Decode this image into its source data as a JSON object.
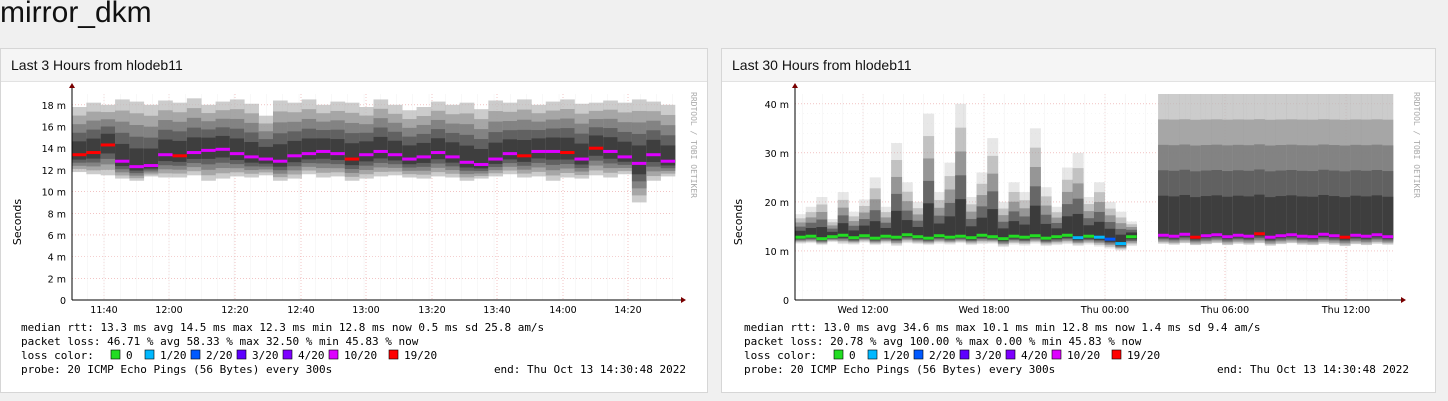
{
  "page": {
    "title": "mirror_dkm"
  },
  "colors": {
    "loss": [
      "#22dd22",
      "#00b8ff",
      "#0059ff",
      "#5e00ff",
      "#7e00ff",
      "#dd00ff",
      "#ff0000"
    ],
    "smoke": [
      "#bbbbbb",
      "#999999",
      "#777777",
      "#555555",
      "#333333"
    ]
  },
  "panels": [
    {
      "header": "Last 3 Hours from hlodeb11",
      "ylabel": "Seconds",
      "watermark": "RRDTOOL / TOBI OETIKER",
      "stats": {
        "rtt": "median rtt:  13.3 ms avg   14.5 ms max   12.3 ms min   12.8 ms now   0.5 ms sd   25.8   am/s",
        "loss": "packet loss: 46.71 % avg   58.33 % max   32.50 % min   45.83 % now",
        "probe": "probe:        20 ICMP Echo Pings (56 Bytes) every 300s",
        "end": "end: Thu Oct 13 14:30:48 2022"
      },
      "loss_legend_label": "loss color:",
      "loss_legend": [
        "0",
        "1/20",
        "2/20",
        "3/20",
        "4/20",
        "10/20",
        "19/20"
      ],
      "chart_data": {
        "type": "area",
        "xlabel": "",
        "ylabel": "Seconds",
        "x_ticks": [
          "11:40",
          "12:00",
          "12:20",
          "12:40",
          "13:00",
          "13:20",
          "13:40",
          "14:00",
          "14:20"
        ],
        "y_ticks": [
          "0",
          "2 m",
          "4 m",
          "6 m",
          "8 m",
          "10 m",
          "12 m",
          "14 m",
          "16 m",
          "18 m"
        ],
        "ylim": [
          0,
          0.019
        ],
        "grid": true,
        "median_ms": [
          13.4,
          13.6,
          14.3,
          12.8,
          12.3,
          12.4,
          13.4,
          13.3,
          13.6,
          13.8,
          13.9,
          13.5,
          13.2,
          13.0,
          12.8,
          13.3,
          13.5,
          13.7,
          13.5,
          13.0,
          13.4,
          13.7,
          13.4,
          13.0,
          13.2,
          13.6,
          13.2,
          12.7,
          12.5,
          13.0,
          13.5,
          13.3,
          13.7,
          13.7,
          13.6,
          13.0,
          14.0,
          13.7,
          13.2,
          12.6,
          13.4,
          12.8
        ],
        "low_ms": [
          11.8,
          11.6,
          11.5,
          11.2,
          11.0,
          11.4,
          11.3,
          11.3,
          11.5,
          11.0,
          11.2,
          11.4,
          11.3,
          11.5,
          11.0,
          11.2,
          11.6,
          11.3,
          11.4,
          11.0,
          11.2,
          11.4,
          11.5,
          11.3,
          11.2,
          11.4,
          11.3,
          11.0,
          11.2,
          11.4,
          11.6,
          11.3,
          11.4,
          11.0,
          11.3,
          11.2,
          11.5,
          11.3,
          11.6,
          9.0,
          11.0,
          11.4
        ],
        "high_ms": [
          17.8,
          18.2,
          18.0,
          18.5,
          18.3,
          18.0,
          18.4,
          18.2,
          18.6,
          18.0,
          18.3,
          18.5,
          18.1,
          17.0,
          18.4,
          18.2,
          18.5,
          18.0,
          18.3,
          18.2,
          17.8,
          18.5,
          18.0,
          17.5,
          17.8,
          18.3,
          18.0,
          18.2,
          17.6,
          18.4,
          18.2,
          18.5,
          18.0,
          18.3,
          18.5,
          18.1,
          18.2,
          18.4,
          18.2,
          18.5,
          18.3,
          18.0
        ],
        "loss_level": [
          6,
          6,
          6,
          5,
          5,
          5,
          5,
          6,
          5,
          5,
          5,
          5,
          5,
          5,
          5,
          5,
          5,
          5,
          5,
          6,
          5,
          5,
          5,
          5,
          5,
          5,
          5,
          5,
          5,
          5,
          5,
          6,
          5,
          5,
          6,
          5,
          6,
          5,
          5,
          5,
          5,
          5
        ]
      }
    },
    {
      "header": "Last 30 Hours from hlodeb11",
      "ylabel": "Seconds",
      "watermark": "RRDTOOL / TOBI OETIKER",
      "stats": {
        "rtt": "median rtt:  13.0 ms avg   34.6 ms max   10.1 ms min   12.8 ms now   1.4 ms sd   9.4   am/s",
        "loss": "packet loss: 20.78 % avg   100.00 % max   0.00 % min   45.83 % now",
        "probe": "probe:        20 ICMP Echo Pings (56 Bytes) every 300s",
        "end": "end: Thu Oct 13 14:30:48 2022"
      },
      "loss_legend_label": "loss color:",
      "loss_legend": [
        "0",
        "1/20",
        "2/20",
        "3/20",
        "4/20",
        "10/20",
        "19/20"
      ],
      "chart_data": {
        "type": "area",
        "xlabel": "",
        "ylabel": "Seconds",
        "x_ticks": [
          "Wed 12:00",
          "Wed 18:00",
          "Thu 00:00",
          "Thu 06:00",
          "Thu 12:00"
        ],
        "y_ticks": [
          "0",
          "10 m",
          "20 m",
          "30 m",
          "40 m"
        ],
        "ylim": [
          0,
          0.042
        ],
        "grid": true,
        "median_ms": [
          12.8,
          13.0,
          12.5,
          12.9,
          13.2,
          12.7,
          13.1,
          12.6,
          13.0,
          12.8,
          13.3,
          12.9,
          12.6,
          13.1,
          12.8,
          13.0,
          12.7,
          13.2,
          12.9,
          12.5,
          13.0,
          12.8,
          13.1,
          12.6,
          12.9,
          13.2,
          12.7,
          13.0,
          12.8,
          12.4,
          11.5,
          12.9,
          null,
          null,
          13.2,
          13.0,
          13.4,
          12.8,
          13.1,
          13.3,
          12.9,
          13.2,
          13.0,
          13.5,
          12.8,
          13.1,
          13.3,
          13.0,
          12.9,
          13.4,
          13.1,
          12.8,
          13.2,
          13.0,
          13.3,
          12.9
        ],
        "low_ms": [
          11.5,
          11.6,
          11.2,
          11.8,
          11.4,
          11.3,
          11.7,
          11.2,
          11.5,
          11.0,
          11.6,
          11.4,
          11.2,
          11.5,
          11.3,
          11.6,
          11.2,
          11.4,
          11.5,
          10.8,
          11.3,
          11.1,
          11.5,
          11.0,
          11.2,
          11.4,
          11.0,
          11.3,
          10.9,
          10.5,
          10.1,
          11.0,
          null,
          null,
          11.5,
          11.3,
          11.6,
          11.2,
          11.4,
          11.6,
          11.2,
          11.5,
          11.3,
          11.6,
          11.1,
          11.4,
          11.6,
          11.3,
          11.2,
          11.5,
          11.3,
          11.0,
          11.4,
          11.2,
          11.5,
          11.3
        ],
        "high_ms": [
          17.5,
          19.0,
          21.0,
          16.5,
          22.0,
          18.0,
          20.5,
          25.0,
          19.0,
          32.0,
          24.0,
          20.0,
          38.0,
          22.0,
          28.0,
          40.0,
          21.0,
          26.0,
          33.0,
          20.0,
          24.0,
          22.0,
          35.0,
          23.0,
          19.0,
          27.0,
          30.0,
          21.0,
          24.0,
          20.0,
          18.0,
          16.0,
          null,
          null,
          42.0,
          42.0,
          42.0,
          42.0,
          42.0,
          42.0,
          42.0,
          42.0,
          42.0,
          42.0,
          42.0,
          42.0,
          42.0,
          42.0,
          42.0,
          42.0,
          42.0,
          42.0,
          42.0,
          42.0,
          42.0,
          42.0
        ],
        "loss_level": [
          0,
          0,
          0,
          0,
          0,
          0,
          0,
          0,
          0,
          0,
          0,
          0,
          0,
          0,
          0,
          0,
          0,
          0,
          0,
          0,
          0,
          0,
          0,
          0,
          0,
          0,
          1,
          0,
          1,
          2,
          1,
          0,
          null,
          null,
          5,
          5,
          5,
          6,
          5,
          5,
          5,
          5,
          5,
          6,
          5,
          5,
          5,
          5,
          5,
          5,
          5,
          6,
          5,
          5,
          5,
          5
        ]
      }
    }
  ]
}
